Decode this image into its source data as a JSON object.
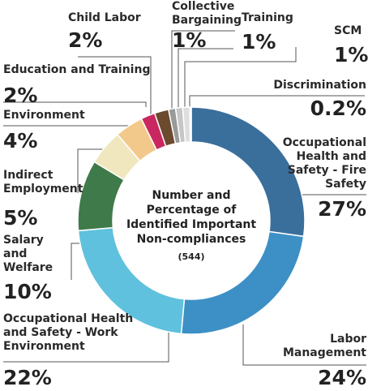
{
  "chart_data": {
    "type": "donut",
    "title": "Number and Percentage of Identified Important Non-compliances",
    "subtitle": "(544)",
    "categories": [
      "Occupational Health and Safety - Fire Safety",
      "Labor Management",
      "Occupational Health and Safety - Work Environment",
      "Salary and Welfare",
      "Indirect Employment",
      "Environment",
      "Education and Training",
      "Child Labor",
      "Collective Bargaining",
      "Training",
      "SCM",
      "Discrimination"
    ],
    "values": [
      27,
      24,
      22,
      10,
      5,
      4,
      2,
      2,
      1,
      1,
      1,
      0.2
    ],
    "value_labels": [
      "27%",
      "24%",
      "22%",
      "10%",
      "5%",
      "4%",
      "2%",
      "2%",
      "1%",
      "1%",
      "1%",
      "0.2%"
    ],
    "colors": [
      "#3a6f9c",
      "#3d90c5",
      "#5fc1dd",
      "#3f7a4a",
      "#f0e7be",
      "#f2c98b",
      "#c8285f",
      "#6b4a2e",
      "#9a9a9a",
      "#c6c6c6",
      "#dedede",
      "#ececec"
    ]
  }
}
